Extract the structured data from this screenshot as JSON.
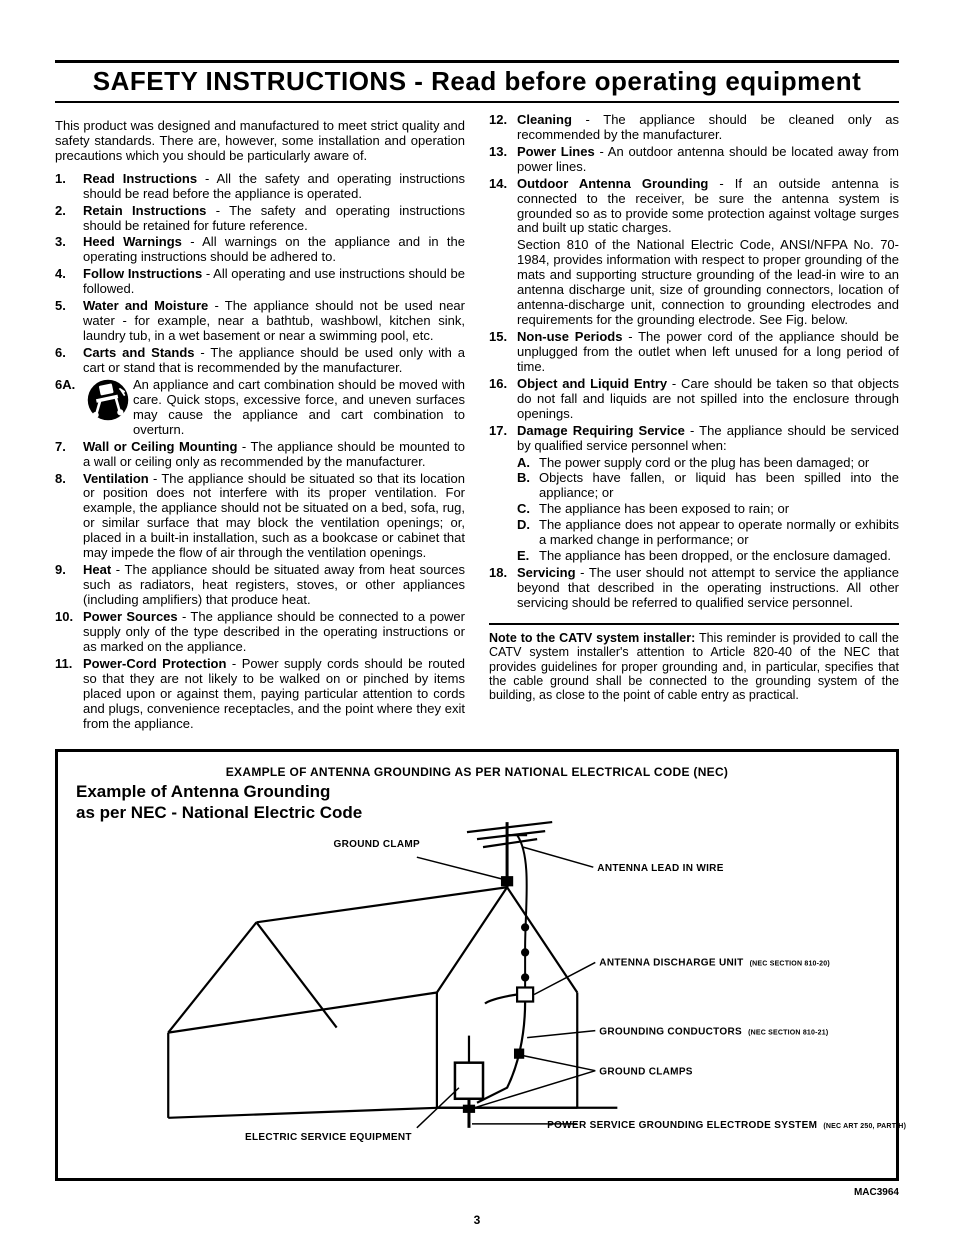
{
  "title": "SAFETY INSTRUCTIONS - Read before operating equipment",
  "intro": "This product was designed and manufactured to meet strict quality and safety standards. There are, however, some installation and operation precautions which you should be particularly aware of.",
  "left_items": [
    {
      "n": "1.",
      "bold": "Read Instructions",
      "text": " - All the safety and operating instructions should be read before the appliance is operated."
    },
    {
      "n": "2.",
      "bold": "Retain Instructions",
      "text": " - The safety and operating instructions should be retained for future reference."
    },
    {
      "n": "3.",
      "bold": "Heed Warnings",
      "text": " - All warnings on the appliance and in the operating instructions should be adhered to."
    },
    {
      "n": "4.",
      "bold": "Follow Instructions",
      "text": " - All operating and use instructions should be followed."
    },
    {
      "n": "5.",
      "bold": "Water and Moisture",
      "text": " - The appliance should not be used near water - for example, near a bathtub, washbowl, kitchen sink, laundry tub, in a wet basement or near a swimming pool, etc."
    },
    {
      "n": "6.",
      "bold": "Carts and Stands",
      "text": " - The appliance should be used only with a cart or stand that is recommended by the manufacturer."
    }
  ],
  "item_6a": {
    "n": "6A.",
    "text": "An appliance and cart combination should be moved with care. Quick stops, excessive force, and uneven surfaces may cause the appliance and cart combination to overturn."
  },
  "left_items_2": [
    {
      "n": "7.",
      "bold": "Wall or Ceiling Mounting",
      "text": " - The appliance should be mounted to a wall or ceiling only as recommended by the manufacturer."
    },
    {
      "n": "8.",
      "bold": "Ventilation",
      "text": " - The appliance should be situated so that its location or position does not interfere with its proper ventilation. For example, the appliance should not be situated on a bed, sofa, rug, or similar surface that may block the ventilation openings; or, placed in a built-in installation, such as a bookcase or cabinet that may impede the flow of air through the ventilation openings."
    },
    {
      "n": "9.",
      "bold": "Heat",
      "text": " - The appliance should be situated away from heat sources such as radiators, heat registers, stoves, or other appliances (including amplifiers) that produce heat."
    },
    {
      "n": "10.",
      "bold": "Power Sources",
      "text": " - The appliance should be connected to a power supply only of the type described in the operating instructions or as marked on the appliance."
    },
    {
      "n": "11.",
      "bold": "Power-Cord Protection",
      "text": " - Power supply cords should be routed so that they are not likely to be walked on or pinched by items placed upon or against them, paying particular attention to cords and plugs, convenience receptacles, and the point where they exit from the appliance."
    }
  ],
  "right_items_1": [
    {
      "n": "12.",
      "bold": "Cleaning",
      "text": " - The appliance should be cleaned only as recommended by the manufacturer."
    },
    {
      "n": "13.",
      "bold": "Power Lines",
      "text": " - An outdoor antenna should be located away from power lines."
    },
    {
      "n": "14.",
      "bold": "Outdoor Antenna Grounding",
      "text": " - If an outside antenna is connected to the receiver, be sure the antenna system is grounded so as to provide some protection against voltage surges and built up static charges."
    }
  ],
  "item_14_extra": "Section 810 of the National Electric Code, ANSI/NFPA No. 70-1984, provides information with respect to proper grounding of the mats and supporting structure grounding of the lead-in wire to an antenna discharge unit, size of grounding connectors, location of antenna-discharge unit, connection to grounding electrodes and requirements for the grounding electrode. See Fig. below.",
  "right_items_2": [
    {
      "n": "15.",
      "bold": "Non-use Periods",
      "text": " - The power cord of the appliance should be unplugged from the outlet when left unused for a long period of time."
    },
    {
      "n": "16.",
      "bold": "Object and Liquid Entry",
      "text": " - Care should be taken so that objects do not fall and liquids are not spilled into the enclosure through openings."
    },
    {
      "n": "17.",
      "bold": "Damage Requiring Service",
      "text": " - The appliance should be serviced by qualified service personnel when:"
    }
  ],
  "item_17_sub": [
    {
      "l": "A.",
      "t": "The power supply cord or the plug has been damaged; or"
    },
    {
      "l": "B.",
      "t": "Objects have fallen, or liquid has been spilled into the appliance; or"
    },
    {
      "l": "C.",
      "t": "The appliance has been exposed to rain; or"
    },
    {
      "l": "D.",
      "t": "The appliance does not appear to operate normally or exhibits a marked change in performance; or"
    },
    {
      "l": "E.",
      "t": "The appliance has been dropped, or the enclosure damaged."
    }
  ],
  "right_item_18": {
    "n": "18.",
    "bold": "Servicing",
    "text": " - The user should not attempt to service the appliance beyond that described in the operating instructions. All other servicing should be referred to qualified service personnel."
  },
  "note_bold": "Note to the CATV system installer:",
  "note_text": " This reminder is provided to call the CATV system installer's attention to Article 820-40 of the NEC that provides guidelines for proper grounding and, in particular, specifies that the cable ground shall be connected to the grounding system of the building, as close to the point of cable entry as practical.",
  "diagram": {
    "heading_right": "EXAMPLE OF ANTENNA GROUNDING AS PER NATIONAL ELECTRICAL CODE (NEC)",
    "heading_left_1": "Example of Antenna Grounding",
    "heading_left_2": "as per NEC - National Electric Code",
    "labels": {
      "ground_clamp": "GROUND CLAMP",
      "antenna_lead": "ANTENNA LEAD IN WIRE",
      "discharge_unit": "ANTENNA DISCHARGE UNIT",
      "discharge_unit_small": "(NEC SECTION 810-20)",
      "conductors": "GROUNDING CONDUCTORS",
      "conductors_small": "(NEC SECTION 810-21)",
      "ground_clamps": "GROUND CLAMPS",
      "electric_service": "ELECTRIC SERVICE EQUIPMENT",
      "power_service": "POWER SERVICE GROUNDING ELECTRODE SYSTEM",
      "power_service_small": "(NEC ART 250, PART H)"
    }
  },
  "footer_id": "MAC3964",
  "page_number": "3",
  "colors": {
    "stroke": "#000000",
    "bg": "#ffffff"
  }
}
